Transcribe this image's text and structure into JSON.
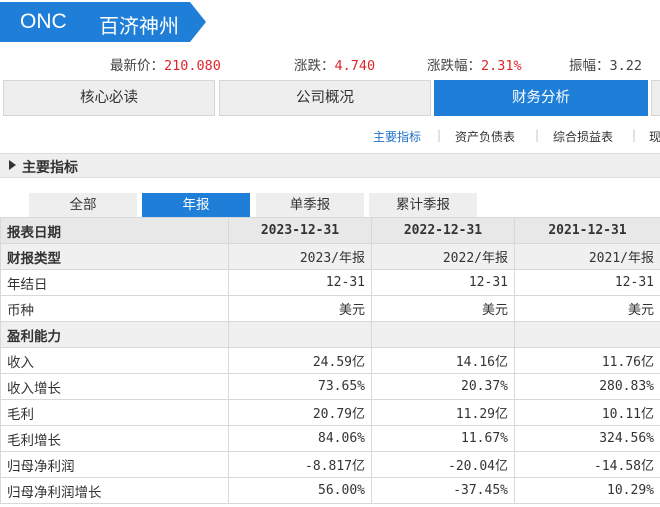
{
  "header": {
    "code": "ONC",
    "name": "百济神州"
  },
  "quote": [
    {
      "label": "最新价：",
      "value": "210.080"
    },
    {
      "label": "涨跌：",
      "value": "4.740"
    },
    {
      "label": "涨跌幅：",
      "value": "2.31%"
    },
    {
      "label": "振幅：",
      "value": "3.22"
    }
  ],
  "main_tabs": [
    {
      "label": "核心必读"
    },
    {
      "label": "公司概况"
    },
    {
      "label": "财务分析"
    }
  ],
  "sub_links": [
    {
      "label": "主要指标"
    },
    {
      "label": "资产负债表"
    },
    {
      "label": "综合损益表"
    },
    {
      "label": "现"
    }
  ],
  "section_title": "主要指标",
  "report_tabs": [
    {
      "label": "全部"
    },
    {
      "label": "年报"
    },
    {
      "label": "单季报"
    },
    {
      "label": "累计季报"
    }
  ],
  "table": {
    "header": [
      "报表日期",
      "2023-12-31",
      "2022-12-31",
      "2021-12-31"
    ],
    "rows": [
      {
        "type": "sub",
        "cells": [
          "财报类型",
          "2023/年报",
          "2022/年报",
          "2021/年报"
        ]
      },
      {
        "type": "data",
        "cells": [
          "年结日",
          "12-31",
          "12-31",
          "12-31"
        ]
      },
      {
        "type": "data",
        "cells": [
          "币种",
          "美元",
          "美元",
          "美元"
        ]
      },
      {
        "type": "group",
        "cells": [
          "盈利能力",
          "",
          "",
          ""
        ]
      },
      {
        "type": "data",
        "cells": [
          "收入",
          "24.59亿",
          "14.16亿",
          "11.76亿"
        ]
      },
      {
        "type": "data",
        "cells": [
          "收入增长",
          "73.65%",
          "20.37%",
          "280.83%"
        ]
      },
      {
        "type": "data",
        "cells": [
          "毛利",
          "20.79亿",
          "11.29亿",
          "10.11亿"
        ]
      },
      {
        "type": "data",
        "cells": [
          "毛利增长",
          "84.06%",
          "11.67%",
          "324.56%"
        ]
      },
      {
        "type": "data",
        "cells": [
          "归母净利润",
          "-8.817亿",
          "-20.04亿",
          "-14.58亿"
        ]
      },
      {
        "type": "data",
        "cells": [
          "归母净利润增长",
          "56.00%",
          "-37.45%",
          "10.29%"
        ]
      }
    ]
  },
  "colors": {
    "accent": "#1f7fd8",
    "up": "#e0262c"
  }
}
